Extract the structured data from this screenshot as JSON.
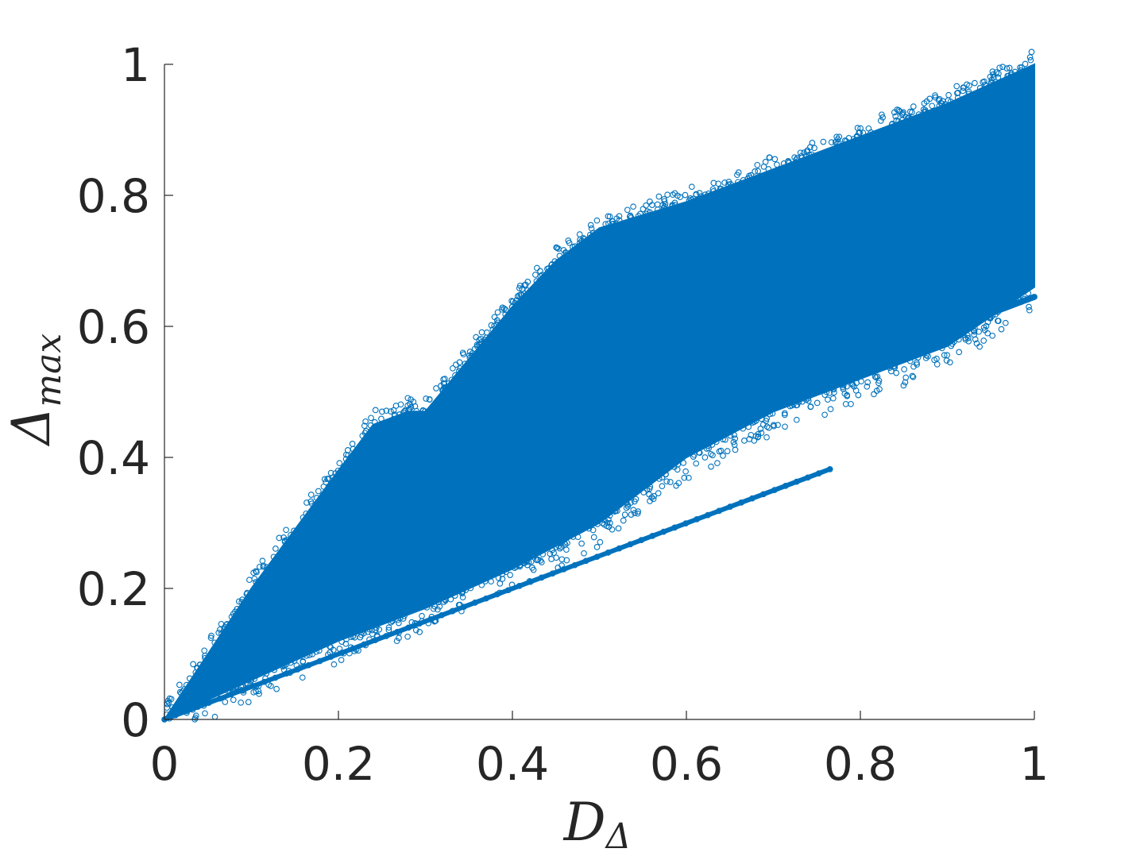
{
  "chart_data": {
    "type": "scatter",
    "title": "",
    "xlabel": {
      "main": "D",
      "sub": "Δ"
    },
    "ylabel": {
      "main": "Δ",
      "sub": "max"
    },
    "xlim": [
      0,
      1
    ],
    "ylim": [
      0,
      1
    ],
    "x_ticks": [
      0,
      0.2,
      0.4,
      0.6,
      0.8,
      1
    ],
    "y_ticks": [
      0,
      0.2,
      0.4,
      0.6,
      0.8,
      1
    ],
    "x_tick_labels": [
      "0",
      "0.2",
      "0.4",
      "0.6",
      "0.8",
      "1"
    ],
    "y_tick_labels": [
      "0",
      "0.2",
      "0.4",
      "0.6",
      "0.8",
      "1"
    ],
    "grid": false,
    "legend": "none",
    "marker": "open-circle",
    "color": "#0072bd",
    "point_count_note": "dense cloud; approximate envelope",
    "series": [
      {
        "kind": "dense-region",
        "upper_envelope": [
          [
            0,
            0
          ],
          [
            0.1,
            0.2
          ],
          [
            0.2,
            0.38
          ],
          [
            0.24,
            0.45
          ],
          [
            0.28,
            0.47
          ],
          [
            0.3,
            0.47
          ],
          [
            0.35,
            0.55
          ],
          [
            0.4,
            0.63
          ],
          [
            0.45,
            0.7
          ],
          [
            0.5,
            0.75
          ],
          [
            0.55,
            0.77
          ],
          [
            0.6,
            0.79
          ],
          [
            0.7,
            0.84
          ],
          [
            0.8,
            0.89
          ],
          [
            0.9,
            0.94
          ],
          [
            1.0,
            1.0
          ]
        ],
        "lower_envelope": [
          [
            0,
            0
          ],
          [
            0.1,
            0.06
          ],
          [
            0.2,
            0.12
          ],
          [
            0.3,
            0.17
          ],
          [
            0.4,
            0.23
          ],
          [
            0.5,
            0.3
          ],
          [
            0.6,
            0.4
          ],
          [
            0.7,
            0.47
          ],
          [
            0.8,
            0.52
          ],
          [
            0.9,
            0.57
          ],
          [
            1.0,
            0.66
          ]
        ]
      },
      {
        "kind": "line-band",
        "points": [
          [
            0,
            0
          ],
          [
            0.765,
            0.382
          ]
        ]
      },
      {
        "kind": "line-band",
        "points": [
          [
            0.91,
            0.6
          ],
          [
            1.0,
            0.645
          ]
        ]
      }
    ]
  }
}
